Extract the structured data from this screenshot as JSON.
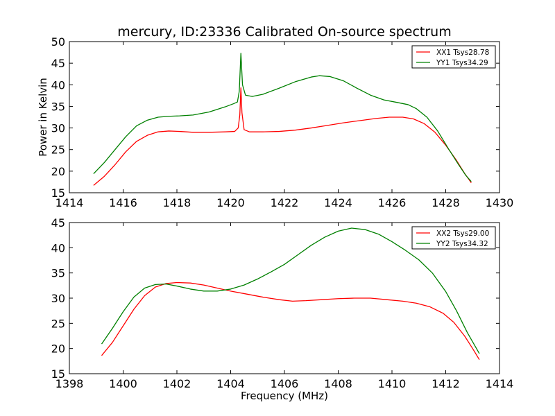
{
  "chart_data": [
    {
      "type": "line",
      "title": "mercury, ID:23336 Calibrated On-source spectrum",
      "xlabel": "",
      "ylabel": "Power in Kelvin",
      "xlim": [
        1414,
        1430
      ],
      "ylim": [
        15,
        50
      ],
      "xticks": [
        1414,
        1416,
        1418,
        1420,
        1422,
        1424,
        1426,
        1428,
        1430
      ],
      "yticks": [
        15,
        20,
        25,
        30,
        35,
        40,
        45,
        50
      ],
      "legend_position": "top-right",
      "series": [
        {
          "name": "XX1 Tsys28.78",
          "color": "#ff0000",
          "points": [
            [
              1414.9,
              16.7
            ],
            [
              1415.3,
              18.8
            ],
            [
              1415.7,
              21.5
            ],
            [
              1416.1,
              24.5
            ],
            [
              1416.5,
              26.9
            ],
            [
              1416.9,
              28.3
            ],
            [
              1417.3,
              29.1
            ],
            [
              1417.7,
              29.3
            ],
            [
              1418.1,
              29.2
            ],
            [
              1418.6,
              29.0
            ],
            [
              1419.2,
              29.0
            ],
            [
              1419.8,
              29.1
            ],
            [
              1420.15,
              29.2
            ],
            [
              1420.28,
              30.0
            ],
            [
              1420.34,
              33.0
            ],
            [
              1420.38,
              39.3
            ],
            [
              1420.42,
              33.5
            ],
            [
              1420.5,
              29.6
            ],
            [
              1420.7,
              29.1
            ],
            [
              1421.2,
              29.1
            ],
            [
              1421.8,
              29.2
            ],
            [
              1422.4,
              29.5
            ],
            [
              1423.0,
              30.0
            ],
            [
              1423.6,
              30.6
            ],
            [
              1424.2,
              31.2
            ],
            [
              1424.8,
              31.7
            ],
            [
              1425.4,
              32.2
            ],
            [
              1425.9,
              32.5
            ],
            [
              1426.4,
              32.5
            ],
            [
              1426.8,
              32.1
            ],
            [
              1427.2,
              31.0
            ],
            [
              1427.6,
              29.0
            ],
            [
              1428.0,
              26.0
            ],
            [
              1428.4,
              22.5
            ],
            [
              1428.7,
              19.5
            ],
            [
              1428.95,
              17.3
            ]
          ]
        },
        {
          "name": "YY1 Tsys34.29",
          "color": "#008000",
          "points": [
            [
              1414.9,
              19.4
            ],
            [
              1415.3,
              22.0
            ],
            [
              1415.7,
              25.0
            ],
            [
              1416.1,
              28.0
            ],
            [
              1416.5,
              30.5
            ],
            [
              1416.9,
              31.8
            ],
            [
              1417.3,
              32.5
            ],
            [
              1417.7,
              32.7
            ],
            [
              1418.1,
              32.8
            ],
            [
              1418.6,
              33.0
            ],
            [
              1419.2,
              33.7
            ],
            [
              1419.8,
              34.9
            ],
            [
              1420.1,
              35.6
            ],
            [
              1420.25,
              36.0
            ],
            [
              1420.32,
              38.5
            ],
            [
              1420.38,
              47.3
            ],
            [
              1420.44,
              40.0
            ],
            [
              1420.55,
              37.6
            ],
            [
              1420.8,
              37.3
            ],
            [
              1421.2,
              37.8
            ],
            [
              1421.8,
              39.2
            ],
            [
              1422.4,
              40.7
            ],
            [
              1423.0,
              41.8
            ],
            [
              1423.3,
              42.1
            ],
            [
              1423.7,
              41.9
            ],
            [
              1424.2,
              40.9
            ],
            [
              1424.7,
              39.2
            ],
            [
              1425.2,
              37.6
            ],
            [
              1425.7,
              36.5
            ],
            [
              1426.2,
              35.9
            ],
            [
              1426.6,
              35.4
            ],
            [
              1426.9,
              34.5
            ],
            [
              1427.3,
              32.5
            ],
            [
              1427.7,
              29.3
            ],
            [
              1428.1,
              25.2
            ],
            [
              1428.5,
              21.3
            ],
            [
              1428.75,
              19.0
            ],
            [
              1428.95,
              17.6
            ]
          ]
        }
      ]
    },
    {
      "type": "line",
      "title": "",
      "xlabel": "Frequency (MHz)",
      "ylabel": "",
      "xlim": [
        1398,
        1414
      ],
      "ylim": [
        15,
        45
      ],
      "xticks": [
        1398,
        1400,
        1402,
        1404,
        1406,
        1408,
        1410,
        1412,
        1414
      ],
      "yticks": [
        15,
        20,
        25,
        30,
        35,
        40,
        45
      ],
      "legend_position": "top-right",
      "series": [
        {
          "name": "XX2 Tsys29.00",
          "color": "#ff0000",
          "points": [
            [
              1399.2,
              18.6
            ],
            [
              1399.6,
              21.2
            ],
            [
              1400.0,
              24.5
            ],
            [
              1400.4,
              27.8
            ],
            [
              1400.8,
              30.5
            ],
            [
              1401.2,
              32.2
            ],
            [
              1401.6,
              32.9
            ],
            [
              1402.0,
              33.1
            ],
            [
              1402.5,
              33.0
            ],
            [
              1403.0,
              32.6
            ],
            [
              1403.5,
              32.0
            ],
            [
              1404.0,
              31.4
            ],
            [
              1404.6,
              30.8
            ],
            [
              1405.2,
              30.2
            ],
            [
              1405.8,
              29.7
            ],
            [
              1406.3,
              29.4
            ],
            [
              1406.8,
              29.5
            ],
            [
              1407.4,
              29.7
            ],
            [
              1408.0,
              29.9
            ],
            [
              1408.6,
              30.0
            ],
            [
              1409.2,
              30.0
            ],
            [
              1409.8,
              29.7
            ],
            [
              1410.4,
              29.4
            ],
            [
              1410.9,
              29.0
            ],
            [
              1411.4,
              28.3
            ],
            [
              1411.9,
              27.0
            ],
            [
              1412.3,
              25.2
            ],
            [
              1412.7,
              22.5
            ],
            [
              1413.0,
              20.0
            ],
            [
              1413.25,
              17.8
            ]
          ]
        },
        {
          "name": "YY2 Tsys34.32",
          "color": "#008000",
          "points": [
            [
              1399.2,
              20.9
            ],
            [
              1399.6,
              24.0
            ],
            [
              1400.0,
              27.3
            ],
            [
              1400.4,
              30.2
            ],
            [
              1400.8,
              32.0
            ],
            [
              1401.2,
              32.7
            ],
            [
              1401.6,
              32.8
            ],
            [
              1402.0,
              32.4
            ],
            [
              1402.5,
              31.8
            ],
            [
              1403.0,
              31.4
            ],
            [
              1403.5,
              31.4
            ],
            [
              1404.0,
              31.8
            ],
            [
              1404.5,
              32.6
            ],
            [
              1405.0,
              33.8
            ],
            [
              1405.5,
              35.2
            ],
            [
              1406.0,
              36.7
            ],
            [
              1406.5,
              38.6
            ],
            [
              1407.0,
              40.5
            ],
            [
              1407.5,
              42.1
            ],
            [
              1408.0,
              43.3
            ],
            [
              1408.5,
              43.9
            ],
            [
              1409.0,
              43.6
            ],
            [
              1409.5,
              42.7
            ],
            [
              1410.0,
              41.2
            ],
            [
              1410.5,
              39.5
            ],
            [
              1411.0,
              37.6
            ],
            [
              1411.5,
              35.0
            ],
            [
              1412.0,
              31.3
            ],
            [
              1412.4,
              27.5
            ],
            [
              1412.8,
              23.2
            ],
            [
              1413.25,
              19.0
            ]
          ]
        }
      ]
    }
  ]
}
